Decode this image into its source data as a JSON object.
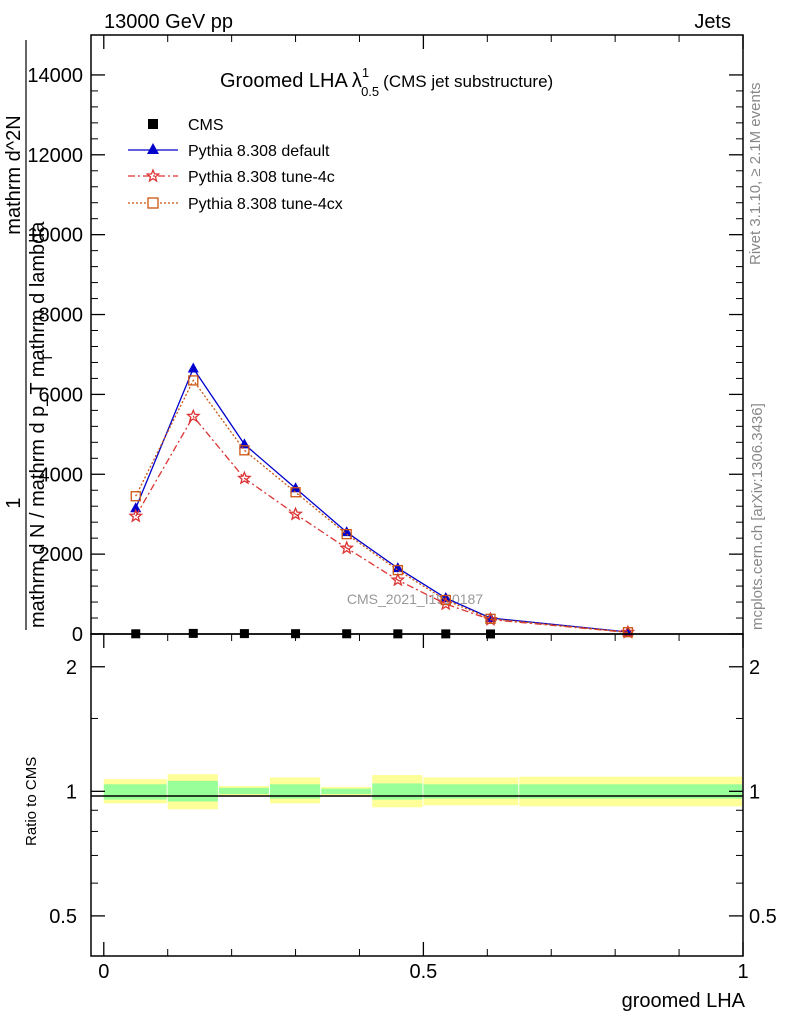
{
  "header": {
    "left": "13000 GeV pp",
    "right": "Jets"
  },
  "side_labels": {
    "rivet": "Rivet 3.1.10, ≥ 2.1M events",
    "mcplots": "mcplots.cern.ch [arXiv:1306.3436]"
  },
  "colors": {
    "cms": "#000000",
    "pythia_default": "#0000cc",
    "pythia_tune4c": "#dd3333",
    "pythia_tune4cx": "#cc5511",
    "band_inner": "#99ff99",
    "band_outer": "#ffff99"
  },
  "chart_data": [
    {
      "type": "line",
      "title": "Groomed LHA",
      "title_symbol": "λ",
      "title_sup": "1",
      "title_sub": "0.5",
      "title_note": "(CMS jet substructure)",
      "watermark": "CMS_2021_I1920187",
      "ylabel_numerator": "1",
      "ylabel_denominator": "mathrm d N / mathrm d p_T mathrm d lambda",
      "ylabel_sub": "T",
      "ylabel_top": "mathrm d^2N",
      "ylim": [
        0,
        15000
      ],
      "yticks": [
        0,
        2000,
        4000,
        6000,
        8000,
        10000,
        12000,
        14000
      ],
      "ytick_labels": [
        "0",
        "2000",
        "4000",
        "6000",
        "8000",
        "10000",
        "12000",
        "14000"
      ],
      "xlim": [
        -0.02,
        1.0
      ],
      "legend_position": "top-left",
      "series": [
        {
          "name": "CMS",
          "marker": "square",
          "x": [
            0.05,
            0.14,
            0.22,
            0.3,
            0.38,
            0.46,
            0.535,
            0.605
          ],
          "values": [
            5,
            15,
            10,
            8,
            6,
            4,
            3,
            2
          ]
        },
        {
          "name": "Pythia 8.308 default",
          "marker": "triangle",
          "x": [
            0.05,
            0.14,
            0.22,
            0.3,
            0.38,
            0.46,
            0.535,
            0.605,
            0.82
          ],
          "values": [
            3150,
            6650,
            4750,
            3650,
            2550,
            1650,
            900,
            400,
            50
          ]
        },
        {
          "name": "Pythia 8.308 tune-4c",
          "marker": "star",
          "x": [
            0.05,
            0.14,
            0.22,
            0.3,
            0.38,
            0.46,
            0.535,
            0.605,
            0.82
          ],
          "values": [
            2950,
            5450,
            3900,
            3000,
            2150,
            1350,
            750,
            360,
            40
          ]
        },
        {
          "name": "Pythia 8.308 tune-4cx",
          "marker": "open-square",
          "x": [
            0.05,
            0.14,
            0.22,
            0.3,
            0.38,
            0.46,
            0.535,
            0.605,
            0.82
          ],
          "values": [
            3450,
            6350,
            4600,
            3550,
            2500,
            1600,
            850,
            380,
            45
          ]
        }
      ]
    },
    {
      "type": "area",
      "ylabel": "Ratio to CMS",
      "xlabel": "groomed LHA",
      "ylim": [
        0.4,
        2.4
      ],
      "yticks": [
        0.5,
        1,
        2
      ],
      "ytick_labels": [
        "0.5",
        "1",
        "2"
      ],
      "xlim": [
        -0.02,
        1.0
      ],
      "xticks": [
        0,
        0.5,
        1
      ],
      "xtick_labels": [
        "0",
        "0.5",
        "1"
      ],
      "bins": [
        {
          "lo": 0.0,
          "hi": 0.1,
          "inner": [
            0.955,
            1.04
          ],
          "outer": [
            0.935,
            1.07
          ]
        },
        {
          "lo": 0.1,
          "hi": 0.18,
          "inner": [
            0.945,
            1.06
          ],
          "outer": [
            0.905,
            1.1
          ]
        },
        {
          "lo": 0.18,
          "hi": 0.26,
          "inner": [
            0.985,
            1.02
          ],
          "outer": [
            0.975,
            1.03
          ]
        },
        {
          "lo": 0.26,
          "hi": 0.34,
          "inner": [
            0.96,
            1.04
          ],
          "outer": [
            0.935,
            1.08
          ]
        },
        {
          "lo": 0.34,
          "hi": 0.42,
          "inner": [
            0.985,
            1.015
          ],
          "outer": [
            0.975,
            1.025
          ]
        },
        {
          "lo": 0.42,
          "hi": 0.5,
          "inner": [
            0.955,
            1.045
          ],
          "outer": [
            0.915,
            1.095
          ]
        },
        {
          "lo": 0.5,
          "hi": 0.65,
          "inner": [
            0.96,
            1.04
          ],
          "outer": [
            0.925,
            1.08
          ]
        },
        {
          "lo": 0.65,
          "hi": 1.0,
          "inner": [
            0.96,
            1.04
          ],
          "outer": [
            0.92,
            1.085
          ]
        }
      ]
    }
  ]
}
